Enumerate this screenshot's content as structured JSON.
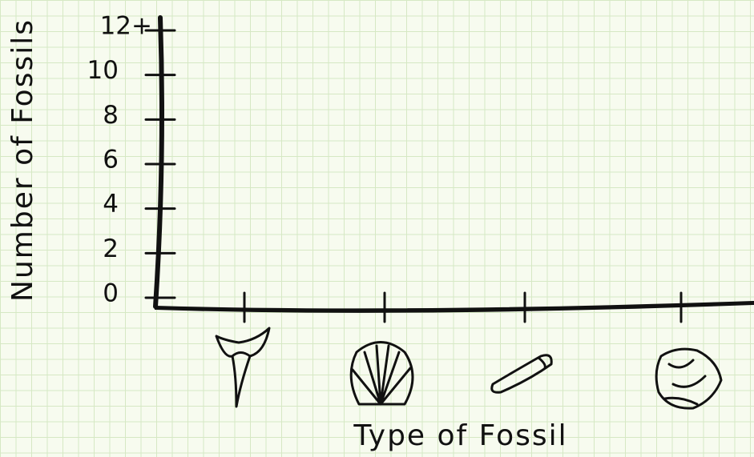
{
  "chart_data": {
    "type": "bar",
    "y_label": "Number of Fossils",
    "x_label": "Type of Fossil",
    "categories": [
      null,
      null,
      null,
      null
    ],
    "ylim": [
      0,
      12
    ],
    "yticks": [
      0,
      2,
      4,
      6,
      8,
      10,
      {
        "value": 12,
        "label": "12+"
      }
    ],
    "color": "#111111"
  }
}
